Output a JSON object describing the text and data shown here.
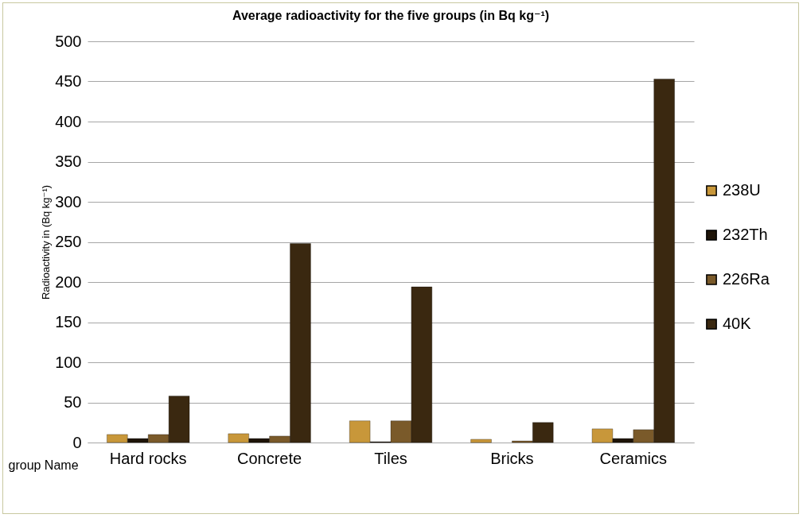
{
  "chart_data": {
    "type": "bar",
    "title": "Average radioactivity for the five groups (in Bq kg⁻¹)",
    "ylabel": "Radioactivity in  (Bq kg⁻¹)",
    "xlabel": "group Name",
    "categories": [
      "Hard rocks",
      "Concrete",
      "Tiles",
      "Bricks",
      "Ceramics"
    ],
    "series": [
      {
        "name": "238U",
        "color": "#c8973a",
        "values": [
          10,
          11,
          27,
          4,
          17
        ]
      },
      {
        "name": "232Th",
        "color": "#1e1408",
        "values": [
          5,
          5,
          1,
          null,
          5
        ]
      },
      {
        "name": "226Ra",
        "color": "#7a5a2a",
        "values": [
          10,
          8,
          27,
          2,
          16
        ]
      },
      {
        "name": "40K",
        "color": "#3a2810",
        "values": [
          58,
          248,
          194,
          25,
          453
        ]
      }
    ],
    "ylim": [
      0,
      500
    ],
    "yticks": [
      0,
      50,
      100,
      150,
      200,
      250,
      300,
      350,
      400,
      450,
      500
    ],
    "grid": "y",
    "legend": "right"
  }
}
